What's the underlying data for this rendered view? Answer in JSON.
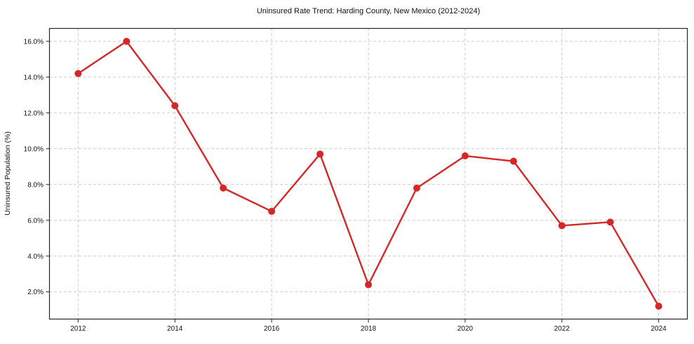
{
  "chart_data": {
    "type": "line",
    "title": "Uninsured Rate Trend: Harding County, New Mexico (2012-2024)",
    "xlabel": "",
    "ylabel": "Uninsured Population (%)",
    "x": [
      2012,
      2013,
      2014,
      2015,
      2016,
      2017,
      2018,
      2019,
      2020,
      2021,
      2022,
      2023,
      2024
    ],
    "values": [
      14.2,
      16.0,
      12.4,
      7.8,
      6.5,
      9.7,
      2.4,
      7.8,
      9.6,
      9.3,
      5.7,
      5.9,
      1.2
    ],
    "xtick_labels": [
      "2012",
      "2014",
      "2016",
      "2018",
      "2020",
      "2022",
      "2024"
    ],
    "ytick_labels": [
      "2.0%",
      "4.0%",
      "6.0%",
      "8.0%",
      "10.0%",
      "12.0%",
      "14.0%",
      "16.0%"
    ],
    "xlim": [
      2011.4,
      2024.6
    ],
    "ylim": [
      0.46,
      16.74
    ],
    "grid": true,
    "legend": "none",
    "line_color": "#d62728",
    "marker": "circle",
    "grid_color": "#cccccc",
    "spine_color": "#262626"
  }
}
